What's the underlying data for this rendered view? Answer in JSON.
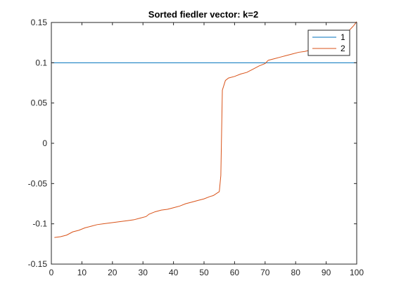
{
  "chart_data": {
    "type": "line",
    "title": "Sorted fiedler vector: k=2",
    "xlabel": "",
    "ylabel": "",
    "xlim": [
      0,
      100
    ],
    "ylim": [
      -0.15,
      0.15
    ],
    "xticks": [
      0,
      10,
      20,
      30,
      40,
      50,
      60,
      70,
      80,
      90,
      100
    ],
    "yticks": [
      -0.15,
      -0.1,
      -0.05,
      0,
      0.05,
      0.1,
      0.15
    ],
    "xtick_labels": [
      "0",
      "10",
      "20",
      "30",
      "40",
      "50",
      "60",
      "70",
      "80",
      "90",
      "100"
    ],
    "ytick_labels": [
      "-0.15",
      "-0.1",
      "-0.05",
      "0",
      "0.05",
      "0.1",
      "0.15"
    ],
    "grid": false,
    "legend_position": "top-right",
    "series": [
      {
        "name": "1",
        "color": "#0072BD",
        "x": [
          0,
          100
        ],
        "y": [
          0.1,
          0.1
        ]
      },
      {
        "name": "2",
        "color": "#D95319",
        "x": [
          1,
          3,
          5,
          7,
          9,
          11,
          13,
          15,
          17,
          19,
          21,
          23,
          25,
          27,
          29,
          31,
          32,
          34,
          36,
          38,
          40,
          42,
          44,
          46,
          48,
          50,
          52,
          53,
          55,
          55.5,
          56,
          57,
          58,
          60,
          62,
          64,
          66,
          68,
          70,
          71,
          73,
          75,
          77,
          79,
          81,
          83,
          85,
          87,
          89,
          91,
          93,
          95,
          97,
          99,
          100
        ],
        "y": [
          -0.117,
          -0.116,
          -0.114,
          -0.11,
          -0.108,
          -0.105,
          -0.103,
          -0.101,
          -0.1,
          -0.099,
          -0.098,
          -0.097,
          -0.096,
          -0.095,
          -0.093,
          -0.091,
          -0.088,
          -0.085,
          -0.083,
          -0.082,
          -0.08,
          -0.078,
          -0.075,
          -0.073,
          -0.071,
          -0.069,
          -0.066,
          -0.065,
          -0.06,
          -0.04,
          0.066,
          0.078,
          0.081,
          0.083,
          0.086,
          0.088,
          0.092,
          0.096,
          0.099,
          0.103,
          0.105,
          0.107,
          0.109,
          0.111,
          0.113,
          0.114,
          0.116,
          0.118,
          0.12,
          0.123,
          0.127,
          0.132,
          0.138,
          0.146,
          0.151
        ]
      }
    ]
  }
}
